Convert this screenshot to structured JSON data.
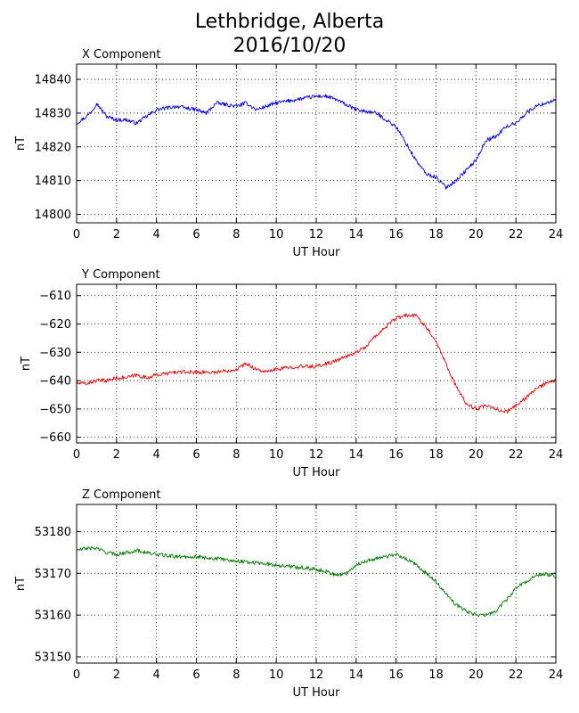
{
  "figure": {
    "title_line1": "Lethbridge, Alberta",
    "title_line2": "2016/10/20"
  },
  "chart_data": [
    {
      "type": "line",
      "title": "X Component",
      "xlabel": "UT Hour",
      "ylabel": "nT",
      "xlim": [
        0,
        24
      ],
      "ylim": [
        14797.5,
        14844.5
      ],
      "xticks": [
        0,
        2,
        4,
        6,
        8,
        10,
        12,
        14,
        16,
        18,
        20,
        22,
        24
      ],
      "yticks": [
        14800,
        14810,
        14820,
        14830,
        14840
      ],
      "grid": true,
      "color": "#0000ff",
      "series": [
        {
          "x": [
            0,
            0.5,
            0.8,
            1.0,
            1.5,
            2.0,
            2.5,
            3.0,
            3.5,
            4.0,
            5.0,
            6.0,
            6.5,
            7.0,
            8.0,
            8.5,
            9.0,
            10.0,
            11.0,
            12.0,
            12.5,
            13.0,
            14.0,
            15.0,
            15.5,
            16.0,
            16.5,
            17.0,
            17.5,
            18.0,
            18.5,
            19.0,
            19.5,
            20.0,
            20.5,
            21.0,
            21.5,
            22.0,
            22.5,
            23.0,
            23.5,
            24.0
          ],
          "y": [
            14827,
            14829,
            14831,
            14833,
            14829,
            14828,
            14828,
            14827,
            14829,
            14831,
            14832,
            14831,
            14830,
            14833,
            14832,
            14833,
            14831,
            14833,
            14834,
            14835,
            14835,
            14834,
            14831,
            14830,
            14828,
            14826,
            14821,
            14816,
            14812,
            14811,
            14808,
            14810,
            14813,
            14816,
            14822,
            14823,
            14826,
            14827,
            14830,
            14832,
            14833,
            14834
          ]
        }
      ]
    },
    {
      "type": "line",
      "title": "Y Component",
      "xlabel": "UT Hour",
      "ylabel": "nT",
      "xlim": [
        0,
        24
      ],
      "ylim": [
        -662,
        -606
      ],
      "xticks": [
        0,
        2,
        4,
        6,
        8,
        10,
        12,
        14,
        16,
        18,
        20,
        22,
        24
      ],
      "yticks": [
        -610,
        -620,
        -630,
        -640,
        -650,
        -660
      ],
      "grid": true,
      "color": "#ff0000",
      "series": [
        {
          "x": [
            0,
            0.5,
            1.0,
            1.5,
            2.0,
            2.5,
            3.0,
            3.5,
            4.0,
            5.0,
            6.0,
            7.0,
            8.0,
            8.5,
            9.0,
            9.5,
            10.0,
            11.0,
            12.0,
            13.0,
            14.0,
            14.5,
            15.0,
            15.5,
            16.0,
            16.5,
            17.0,
            17.5,
            18.0,
            18.5,
            19.0,
            19.5,
            20.0,
            20.5,
            21.0,
            21.5,
            22.0,
            22.5,
            23.0,
            23.5,
            24.0
          ],
          "y": [
            -641,
            -641,
            -640,
            -640,
            -639,
            -639,
            -638,
            -639,
            -638,
            -637,
            -637,
            -637,
            -636,
            -634,
            -636,
            -637,
            -636,
            -635,
            -635,
            -633,
            -630,
            -628,
            -624,
            -621,
            -618,
            -617,
            -617,
            -621,
            -626,
            -634,
            -642,
            -648,
            -650,
            -649,
            -650,
            -651,
            -649,
            -646,
            -643,
            -641,
            -640
          ]
        }
      ]
    },
    {
      "type": "line",
      "title": "Z Component",
      "xlabel": "UT Hour",
      "ylabel": "nT",
      "xlim": [
        0,
        24
      ],
      "ylim": [
        53148.5,
        53186.5
      ],
      "xticks": [
        0,
        2,
        4,
        6,
        8,
        10,
        12,
        14,
        16,
        18,
        20,
        22,
        24
      ],
      "yticks": [
        53150,
        53160,
        53170,
        53180
      ],
      "grid": true,
      "color": "#008000",
      "series": [
        {
          "x": [
            0,
            0.5,
            1.0,
            1.5,
            2.0,
            2.5,
            3.0,
            3.5,
            4.0,
            5.0,
            6.0,
            7.0,
            8.0,
            9.0,
            10.0,
            11.0,
            12.0,
            12.5,
            13.0,
            13.5,
            14.0,
            14.5,
            15.0,
            15.5,
            16.0,
            16.5,
            17.0,
            17.5,
            18.0,
            18.5,
            19.0,
            19.5,
            20.0,
            20.5,
            21.0,
            21.5,
            22.0,
            22.5,
            23.0,
            23.5,
            24.0
          ],
          "y": [
            53175.5,
            53176,
            53176,
            53175,
            53174.5,
            53175,
            53175.5,
            53175,
            53174.5,
            53174,
            53174,
            53173.5,
            53173,
            53172.5,
            53172,
            53171.5,
            53171,
            53170.5,
            53169.5,
            53170,
            53172,
            53173,
            53173.5,
            53174,
            53174.5,
            53173.5,
            53172,
            53170,
            53168,
            53165,
            53162.5,
            53161,
            53160,
            53160,
            53161,
            53163.5,
            53166.5,
            53168,
            53169.5,
            53170,
            53169
          ]
        }
      ]
    }
  ]
}
